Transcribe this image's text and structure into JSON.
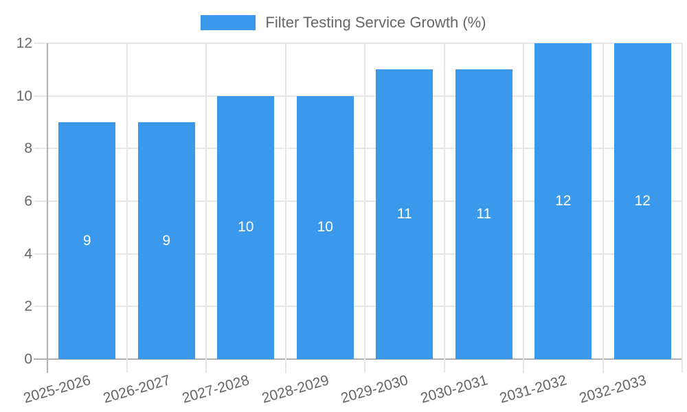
{
  "legend": {
    "label": "Filter Testing Service Growth (%)"
  },
  "chart_data": {
    "type": "bar",
    "title": "Filter Testing Service Growth (%)",
    "categories": [
      "2025-2026",
      "2026-2027",
      "2027-2028",
      "2028-2029",
      "2029-2030",
      "2030-2031",
      "2031-2032",
      "2032-2033"
    ],
    "values": [
      9,
      9,
      10,
      10,
      11,
      11,
      12,
      12
    ],
    "series": [
      {
        "name": "Filter Testing Service Growth (%)",
        "values": [
          9,
          9,
          10,
          10,
          11,
          11,
          12,
          12
        ]
      }
    ],
    "xlabel": "",
    "ylabel": "",
    "ylim": [
      0,
      12
    ],
    "yticks": [
      0,
      2,
      4,
      6,
      8,
      10,
      12
    ],
    "grid": true,
    "bar_value_labels_inside": true,
    "legend_position": "top",
    "x_tick_rotation_deg": -16
  },
  "colors": {
    "bar": "#3b99ec",
    "grid_line": "#e6e6e6",
    "axis_line": "#b0b0b0",
    "tick_text": "#666666",
    "legend_text": "#666666",
    "bar_value_label": "#ffffff",
    "background": "#ffffff"
  }
}
